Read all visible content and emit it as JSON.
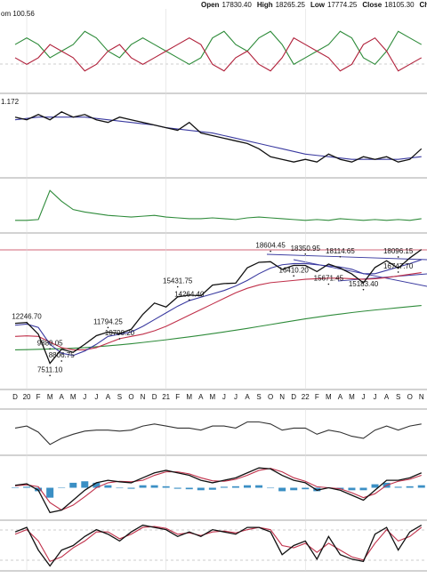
{
  "chart_data": {
    "type": "line",
    "header": [
      {
        "name": "Open",
        "value": 17830.4,
        "label": "17830.40"
      },
      {
        "name": "High",
        "value": 18265.25,
        "label": "18265.25"
      },
      {
        "name": "Low",
        "value": 17774.25,
        "label": "17774.25"
      },
      {
        "name": "Close",
        "value": 18105.3,
        "label": "18105.30"
      },
      {
        "name": "Chg"
      }
    ],
    "x": [
      "2019-12",
      "2020-01",
      "2020-02",
      "2020-03",
      "2020-04",
      "2020-05",
      "2020-06",
      "2020-07",
      "2020-08",
      "2020-09",
      "2020-10",
      "2020-11",
      "2020-12",
      "2021-01",
      "2021-02",
      "2021-03",
      "2021-04",
      "2021-05",
      "2021-06",
      "2021-07",
      "2021-08",
      "2021-09",
      "2021-10",
      "2021-11",
      "2021-12",
      "2022-01",
      "2022-02",
      "2022-03",
      "2022-04",
      "2022-05",
      "2022-06",
      "2022-07",
      "2022-08",
      "2022-09",
      "2022-10",
      "2022-11"
    ],
    "xticks": [
      {
        "value": "2019-12",
        "label": "D"
      },
      {
        "value": "2020-01",
        "label": "20"
      },
      {
        "value": "2020-02",
        "label": "F"
      },
      {
        "value": "2020-03",
        "label": "M"
      },
      {
        "value": "2020-04",
        "label": "A"
      },
      {
        "value": "2020-05",
        "label": "M"
      },
      {
        "value": "2020-06",
        "label": "J"
      },
      {
        "value": "2020-07",
        "label": "J"
      },
      {
        "value": "2020-08",
        "label": "A"
      },
      {
        "value": "2020-09",
        "label": "S"
      },
      {
        "value": "2020-10",
        "label": "O"
      },
      {
        "value": "2020-11",
        "label": "N"
      },
      {
        "value": "2020-12",
        "label": "D"
      },
      {
        "value": "2021-01",
        "label": "21"
      },
      {
        "value": "2021-02",
        "label": "F"
      },
      {
        "value": "2021-03",
        "label": "M"
      },
      {
        "value": "2021-04",
        "label": "A"
      },
      {
        "value": "2021-05",
        "label": "M"
      },
      {
        "value": "2021-06",
        "label": "J"
      },
      {
        "value": "2021-07",
        "label": "J"
      },
      {
        "value": "2021-08",
        "label": "A"
      },
      {
        "value": "2021-09",
        "label": "S"
      },
      {
        "value": "2021-10",
        "label": "O"
      },
      {
        "value": "2021-11",
        "label": "N"
      },
      {
        "value": "2021-12",
        "label": "D"
      },
      {
        "value": "2022-01",
        "label": "22"
      },
      {
        "value": "2022-02",
        "label": "F"
      },
      {
        "value": "2022-03",
        "label": "M"
      },
      {
        "value": "2022-04",
        "label": "A"
      },
      {
        "value": "2022-05",
        "label": "M"
      },
      {
        "value": "2022-06",
        "label": "J"
      },
      {
        "value": "2022-07",
        "label": "J"
      },
      {
        "value": "2022-08",
        "label": "A"
      },
      {
        "value": "2022-09",
        "label": "S"
      },
      {
        "value": "2022-10",
        "label": "O"
      },
      {
        "value": "2022-11",
        "label": "N"
      }
    ],
    "panels": [
      {
        "label": "om 100.56",
        "ylim": [
          94,
          106
        ],
        "series": [
          {
            "color": "#2e8b3a",
            "values": [
              101,
              102,
              101,
              99,
              100,
              101,
              103,
              102,
              100,
              99,
              101,
              102,
              101,
              100,
              99,
              98,
              99,
              102,
              103,
              101,
              100,
              102,
              103,
              101,
              98,
              99,
              100,
              101,
              103,
              102,
              99,
              98,
              100,
              103,
              102,
              101
            ]
          },
          {
            "color": "#b0203a",
            "values": [
              99,
              98,
              99,
              101,
              100,
              99,
              97,
              98,
              100,
              101,
              99,
              98,
              99,
              100,
              101,
              102,
              101,
              98,
              97,
              99,
              100,
              98,
              97,
              99,
              102,
              101,
              100,
              99,
              97,
              98,
              101,
              102,
              100,
              97,
              98,
              99
            ]
          }
        ]
      },
      {
        "label": "1.172",
        "ylim": [
          1.0,
          1.3
        ],
        "series": [
          {
            "color": "#3a3aa0",
            "values": [
              1.21,
              1.215,
              1.22,
              1.22,
              1.22,
              1.22,
              1.22,
              1.215,
              1.21,
              1.205,
              1.2,
              1.195,
              1.19,
              1.18,
              1.175,
              1.17,
              1.165,
              1.16,
              1.15,
              1.14,
              1.13,
              1.12,
              1.11,
              1.1,
              1.09,
              1.08,
              1.075,
              1.07,
              1.065,
              1.06,
              1.06,
              1.06,
              1.06,
              1.06,
              1.065,
              1.07
            ]
          },
          {
            "color": "#111111",
            "values": [
              1.22,
              1.21,
              1.23,
              1.21,
              1.24,
              1.22,
              1.23,
              1.21,
              1.2,
              1.22,
              1.21,
              1.2,
              1.19,
              1.18,
              1.17,
              1.2,
              1.16,
              1.15,
              1.14,
              1.13,
              1.12,
              1.1,
              1.07,
              1.06,
              1.05,
              1.06,
              1.05,
              1.08,
              1.06,
              1.05,
              1.07,
              1.06,
              1.07,
              1.05,
              1.06,
              1.1
            ]
          }
        ]
      },
      {
        "ylim": [
          0,
          60
        ],
        "series": [
          {
            "color": "#2e8b3a",
            "values": [
              12,
              12,
              13,
              48,
              35,
              25,
              22,
              20,
              18,
              17,
              16,
              17,
              18,
              16,
              15,
              14,
              14,
              15,
              14,
              13,
              15,
              16,
              15,
              14,
              13,
              12,
              13,
              12,
              14,
              13,
              12,
              13,
              12,
              13,
              12,
              14
            ]
          }
        ]
      },
      {
        "ylim": [
          6500,
          20000
        ],
        "series": [
          {
            "color": "#2e8b3a",
            "values": [
              9800,
              9820,
              9850,
              9880,
              9900,
              9950,
              10000,
              10080,
              10160,
              10250,
              10350,
              10460,
              10580,
              10700,
              10830,
              10960,
              11100,
              11250,
              11400,
              11560,
              11720,
              11890,
              12060,
              12230,
              12400,
              12570,
              12720,
              12870,
              13000,
              13130,
              13250,
              13360,
              13460,
              13560,
              13660,
              13760
            ]
          },
          {
            "color": "#c0304a",
            "values": [
              11000,
              11050,
              11000,
              10500,
              10000,
              9800,
              9800,
              10000,
              10400,
              10800,
              11000,
              11200,
              11500,
              11900,
              12400,
              12900,
              13400,
              13900,
              14400,
              14900,
              15300,
              15600,
              15800,
              15900,
              16000,
              16100,
              16150,
              16200,
              16200,
              16150,
              16100,
              16150,
              16250,
              16400,
              16550,
              16700
            ]
          },
          {
            "color": "#3a3aa0",
            "values": [
              12000,
              12100,
              11800,
              10300,
              9500,
              9300,
              9700,
              10300,
              11000,
              11200,
              11400,
              11900,
              12500,
              13100,
              13700,
              14200,
              14500,
              14800,
              15100,
              15500,
              16000,
              16600,
              17100,
              17400,
              17500,
              17500,
              17400,
              17300,
              17200,
              17000,
              16600,
              16600,
              16900,
              17200,
              17500,
              17850
            ]
          },
          {
            "color": "#111111",
            "values": [
              12168,
              12246,
              11200,
              8600,
              9860,
              9580,
              10300,
              11070,
              11390,
              11250,
              11640,
              12970,
              13980,
              13630,
              14530,
              14690,
              14630,
              15580,
              15720,
              15760,
              17130,
              17620,
              17670,
              16980,
              17350,
              17340,
              16790,
              17460,
              17100,
              16580,
              15780,
              17160,
              17760,
              17090,
              18010,
              18760
            ]
          }
        ],
        "annotations": [
          {
            "x": "2020-01",
            "value": 12246.7,
            "label": "12246.70"
          },
          {
            "x": "2020-03",
            "value": 9889.05,
            "label": "9889.05"
          },
          {
            "x": "2020-03",
            "value": 7511.1,
            "label": "7511.10"
          },
          {
            "x": "2020-04",
            "value": 8806.75,
            "label": "8806.75"
          },
          {
            "x": "2020-08",
            "value": 11794.25,
            "label": "11794.25"
          },
          {
            "x": "2020-09",
            "value": 10790.2,
            "label": "10790.20"
          },
          {
            "x": "2021-02",
            "value": 15431.75,
            "label": "15431.75"
          },
          {
            "x": "2021-03",
            "value": 14264.4,
            "label": "14264.40"
          },
          {
            "x": "2021-10",
            "value": 18604.45,
            "label": "18604.45"
          },
          {
            "x": "2021-12",
            "value": 16410.2,
            "label": "16410.20"
          },
          {
            "x": "2022-01",
            "value": 18350.95,
            "label": "18350.95"
          },
          {
            "x": "2022-03",
            "value": 15671.45,
            "label": "15671.45"
          },
          {
            "x": "2022-04",
            "value": 18114.65,
            "label": "18114.65"
          },
          {
            "x": "2022-06",
            "value": 15183.4,
            "label": "15183.40"
          },
          {
            "x": "2022-09",
            "value": 16747.7,
            "label": "16747.70"
          },
          {
            "x": "2022-09",
            "value": 18096.15,
            "label": "18096.15"
          }
        ]
      },
      {
        "ylim": [
          -1,
          1
        ],
        "series": [
          {
            "color": "#333333",
            "values": [
              0.2,
              0.3,
              0,
              -0.6,
              -0.3,
              -0.1,
              0.05,
              0.1,
              0.1,
              0.05,
              0.1,
              0.3,
              0.4,
              0.3,
              0.2,
              0.2,
              0.1,
              0.3,
              0.3,
              0.2,
              0.5,
              0.5,
              0.4,
              0.1,
              0.2,
              0.2,
              -0.1,
              0.1,
              0,
              -0.2,
              -0.3,
              0.1,
              0.3,
              0.1,
              0.3,
              0.4
            ]
          }
        ]
      },
      {
        "ylim": [
          -600,
          600
        ],
        "series": [
          {
            "type": "bar",
            "color": "#3b8fc4",
            "values": [
              10,
              20,
              -70,
              -200,
              0,
              100,
              130,
              100,
              50,
              -10,
              -20,
              50,
              50,
              30,
              -20,
              -30,
              -50,
              -40,
              20,
              30,
              50,
              50,
              -10,
              -70,
              -50,
              -30,
              -70,
              0,
              -30,
              -50,
              -50,
              70,
              100,
              20,
              30,
              50
            ]
          },
          {
            "color": "#c0304a",
            "values": [
              40,
              60,
              20,
              -300,
              -450,
              -350,
              -180,
              0,
              100,
              130,
              120,
              150,
              250,
              320,
              320,
              280,
              200,
              140,
              130,
              170,
              250,
              350,
              390,
              320,
              200,
              130,
              20,
              0,
              -20,
              -100,
              -200,
              -120,
              50,
              130,
              170,
              250
            ]
          },
          {
            "color": "#111111",
            "values": [
              50,
              80,
              -50,
              -500,
              -450,
              -250,
              -50,
              100,
              150,
              120,
              100,
              200,
              300,
              350,
              300,
              250,
              150,
              100,
              150,
              200,
              300,
              400,
              380,
              250,
              150,
              100,
              -50,
              0,
              -50,
              -150,
              -250,
              -50,
              150,
              150,
              200,
              300
            ]
          }
        ]
      },
      {
        "ylim": [
          0,
          100
        ],
        "series": [
          {
            "color": "#c0304a",
            "values": [
              75,
              85,
              60,
              15,
              25,
              45,
              60,
              80,
              80,
              65,
              75,
              90,
              92,
              88,
              75,
              78,
              72,
              80,
              82,
              78,
              85,
              90,
              85,
              50,
              45,
              55,
              35,
              55,
              40,
              25,
              18,
              55,
              85,
              60,
              70,
              90
            ]
          },
          {
            "color": "#111111",
            "values": [
              80,
              90,
              40,
              5,
              40,
              50,
              70,
              85,
              75,
              60,
              80,
              95,
              90,
              85,
              70,
              80,
              70,
              85,
              80,
              75,
              90,
              90,
              80,
              30,
              50,
              60,
              20,
              70,
              30,
              20,
              15,
              75,
              90,
              40,
              80,
              95
            ]
          }
        ]
      }
    ]
  }
}
